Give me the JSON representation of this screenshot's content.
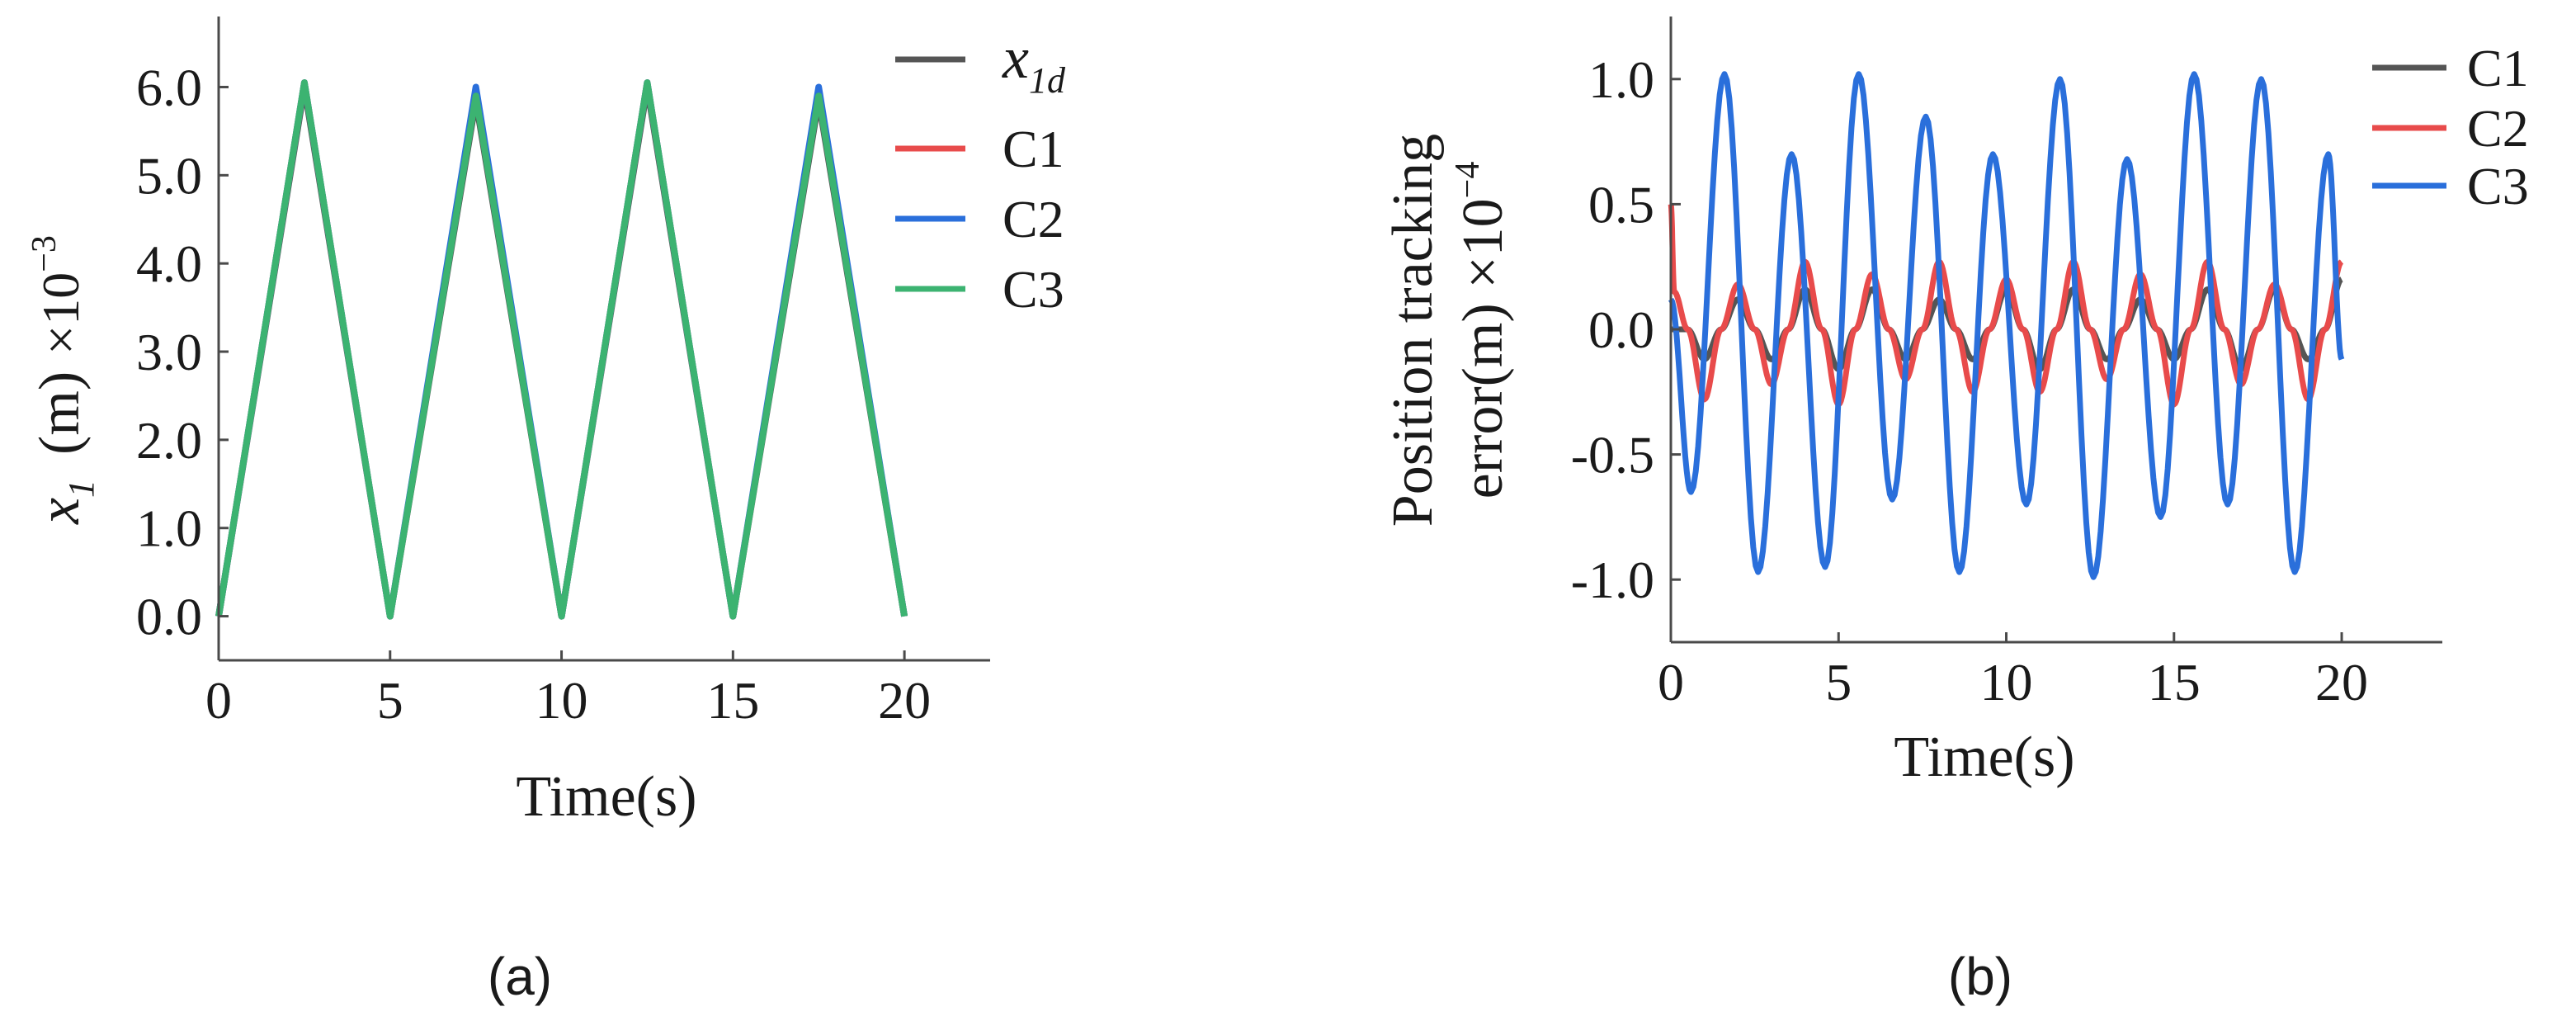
{
  "colors": {
    "x1d": "#555555",
    "C1": "#555555",
    "C2": "#e84b4b",
    "C3": "#2a6fdb",
    "C3_a": "#3cb371"
  },
  "chart_data": [
    {
      "id": "a",
      "type": "line",
      "caption": "(a)",
      "xlabel": "Time(s)",
      "ylabel_var": "x",
      "ylabel_sub": "1",
      "ylabel_unit": "(m)",
      "ylabel_mult": "×10",
      "ylabel_exp": "−3",
      "xlim": [
        0,
        22.5
      ],
      "ylim": [
        -0.5,
        6.8
      ],
      "xticks": [
        "0",
        "5",
        "10",
        "15",
        "20"
      ],
      "xtick_values": [
        0,
        5,
        10,
        15,
        20
      ],
      "yticks": [
        "0.0",
        "1.0",
        "2.0",
        "3.0",
        "4.0",
        "5.0",
        "6.0"
      ],
      "ytick_values": [
        0,
        1,
        2,
        3,
        4,
        5,
        6
      ],
      "legend_position": "top-right",
      "legend": [
        {
          "label_var": "x",
          "label_sub": "1d",
          "color_key": "x1d"
        },
        {
          "label": "C1",
          "color_key": "C2"
        },
        {
          "label": "C2",
          "color_key": "C3"
        },
        {
          "label": "C3",
          "color_key": "C3_a"
        }
      ],
      "series": [
        {
          "color_key": "x1d",
          "x": [
            0,
            2.5,
            5,
            7.5,
            10,
            12.5,
            15,
            17.5,
            20
          ],
          "y": [
            0,
            6.0,
            0,
            5.85,
            0,
            6.0,
            0,
            5.85,
            0
          ]
        },
        {
          "color_key": "C2",
          "x": [
            0,
            2.5,
            5,
            7.5,
            10,
            12.5,
            15,
            17.5,
            20
          ],
          "y": [
            0,
            6.05,
            0,
            5.95,
            0,
            6.05,
            0,
            5.95,
            0
          ]
        },
        {
          "color_key": "C3",
          "x": [
            0,
            2.5,
            5,
            7.5,
            10,
            12.5,
            15,
            17.5,
            20
          ],
          "y": [
            0,
            6.05,
            0,
            6.0,
            0,
            6.05,
            0,
            6.0,
            0
          ]
        },
        {
          "color_key": "C3_a",
          "x": [
            0,
            2.5,
            5,
            7.5,
            10,
            12.5,
            15,
            17.5,
            20
          ],
          "y": [
            0,
            6.05,
            0,
            5.9,
            0,
            6.05,
            0,
            5.9,
            0
          ]
        }
      ]
    },
    {
      "id": "b",
      "type": "line",
      "caption": "(b)",
      "xlabel": "Time(s)",
      "ylabel_line1": "Position   tracking",
      "ylabel_line2": "error(m) ×10",
      "ylabel_exp": "−4",
      "xlim": [
        0,
        23
      ],
      "ylim": [
        -1.25,
        1.25
      ],
      "xticks": [
        "0",
        "5",
        "10",
        "15",
        "20"
      ],
      "xtick_values": [
        0,
        5,
        10,
        15,
        20
      ],
      "yticks": [
        "-1.0",
        "-0.5",
        "0.0",
        "0.5",
        "1.0"
      ],
      "ytick_values": [
        -1,
        -0.5,
        0,
        0.5,
        1
      ],
      "legend_position": "top-right",
      "legend": [
        {
          "label": "C1",
          "color_key": "C1"
        },
        {
          "label": "C2",
          "color_key": "C2"
        },
        {
          "label": "C3",
          "color_key": "C3"
        }
      ],
      "series": [
        {
          "name": "C1",
          "color_key": "C1",
          "x": [
            0,
            0.5,
            1.0,
            1.5,
            2.0,
            2.5,
            3.0,
            3.5,
            4.0,
            4.5,
            5.0,
            5.5,
            6.0,
            6.5,
            7.0,
            7.5,
            8.0,
            8.5,
            9.0,
            9.5,
            10.0,
            10.5,
            11.0,
            11.5,
            12.0,
            12.5,
            13.0,
            13.5,
            14.0,
            14.5,
            15.0,
            15.5,
            16.0,
            16.5,
            17.0,
            17.5,
            18.0,
            18.5,
            19.0,
            19.5,
            20.0
          ],
          "y": [
            0.0,
            0.0,
            -0.12,
            0.0,
            0.12,
            0.0,
            -0.12,
            0.0,
            0.16,
            0.0,
            -0.16,
            0.0,
            0.16,
            0.0,
            -0.12,
            0.0,
            0.12,
            0.0,
            -0.12,
            0.0,
            0.16,
            0.0,
            -0.16,
            0.0,
            0.16,
            0.0,
            -0.12,
            0.0,
            0.12,
            0.0,
            -0.12,
            0.0,
            0.16,
            0.0,
            -0.16,
            0.0,
            0.16,
            0.0,
            -0.12,
            0.0,
            0.2
          ]
        },
        {
          "name": "C2",
          "color_key": "C2",
          "x": [
            0,
            0.1,
            0.5,
            1.0,
            1.5,
            2.0,
            2.5,
            3.0,
            3.5,
            4.0,
            4.5,
            5.0,
            5.5,
            6.0,
            6.5,
            7.0,
            7.5,
            8.0,
            8.5,
            9.0,
            9.5,
            10.0,
            10.5,
            11.0,
            11.5,
            12.0,
            12.5,
            13.0,
            13.5,
            14.0,
            14.5,
            15.0,
            15.5,
            16.0,
            16.5,
            17.0,
            17.5,
            18.0,
            18.5,
            19.0,
            19.5,
            20.0
          ],
          "y": [
            0.5,
            0.15,
            0.0,
            -0.28,
            0.0,
            0.18,
            0.0,
            -0.22,
            0.0,
            0.27,
            0.0,
            -0.3,
            0.0,
            0.22,
            0.0,
            -0.2,
            0.0,
            0.27,
            0.0,
            -0.25,
            0.0,
            0.2,
            0.0,
            -0.25,
            0.0,
            0.27,
            0.0,
            -0.2,
            0.0,
            0.22,
            0.0,
            -0.3,
            0.0,
            0.27,
            0.0,
            -0.22,
            0.0,
            0.18,
            0.0,
            -0.28,
            0.0,
            0.27
          ]
        },
        {
          "name": "C3",
          "color_key": "C3",
          "x": [
            0,
            0.6,
            1.6,
            2.6,
            3.6,
            4.6,
            5.6,
            6.6,
            7.6,
            8.6,
            9.6,
            10.6,
            11.6,
            12.6,
            13.6,
            14.6,
            15.6,
            16.6,
            17.6,
            18.6,
            19.6,
            20.0
          ],
          "y": [
            0.12,
            -0.65,
            1.02,
            -0.97,
            0.7,
            -0.95,
            1.02,
            -0.68,
            0.85,
            -0.97,
            0.7,
            -0.7,
            1.0,
            -0.99,
            0.68,
            -0.75,
            1.02,
            -0.7,
            1.0,
            -0.97,
            0.7,
            -0.12
          ]
        }
      ]
    }
  ]
}
